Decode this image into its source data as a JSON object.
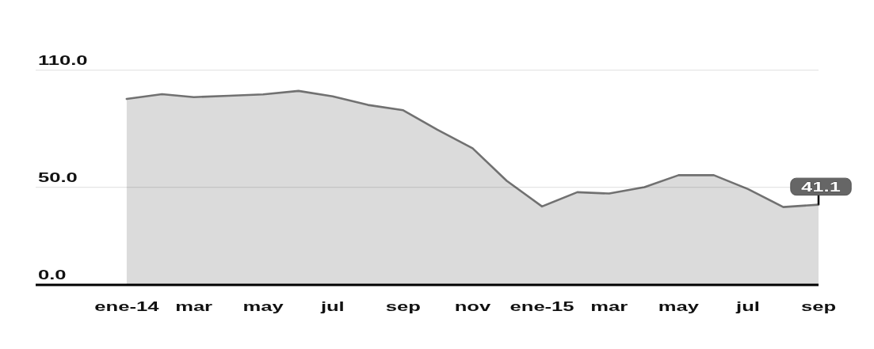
{
  "chart_data": {
    "type": "area",
    "x": [
      "2014-01",
      "2014-02",
      "2014-03",
      "2014-04",
      "2014-05",
      "2014-06",
      "2014-07",
      "2014-08",
      "2014-09",
      "2014-10",
      "2014-11",
      "2014-12",
      "2015-01",
      "2015-02",
      "2015-03",
      "2015-04",
      "2015-05",
      "2015-06",
      "2015-07",
      "2015-08",
      "2015-09"
    ],
    "values": [
      95.3,
      97.7,
      96.2,
      96.9,
      97.6,
      99.4,
      96.6,
      92.2,
      89.5,
      79.5,
      70.0,
      53.3,
      40.2,
      47.5,
      46.8,
      50.1,
      56.2,
      56.2,
      49.1,
      39.9,
      41.1
    ],
    "value_labels": [
      null,
      null,
      null,
      null,
      null,
      null,
      null,
      null,
      null,
      null,
      null,
      null,
      null,
      null,
      null,
      null,
      null,
      null,
      null,
      null,
      "41.1"
    ],
    "color": "#717171",
    "xlim": [
      "2013-10-13",
      "2015-09"
    ],
    "xticks": [
      {
        "value": "2014-01",
        "label": "ene-14"
      },
      {
        "value": "2014-03",
        "label": "mar"
      },
      {
        "value": "2014-05",
        "label": "may"
      },
      {
        "value": "2014-07",
        "label": "jul"
      },
      {
        "value": "2014-09",
        "label": "sep"
      },
      {
        "value": "2014-11",
        "label": "nov"
      },
      {
        "value": "2015-01",
        "label": "ene-15"
      },
      {
        "value": "2015-03",
        "label": "mar"
      },
      {
        "value": "2015-05",
        "label": "may"
      },
      {
        "value": "2015-07",
        "label": "jul"
      },
      {
        "value": "2015-09",
        "label": "sep"
      }
    ],
    "ylim": [
      0,
      110
    ],
    "yticks": [
      {
        "value": 0,
        "label": "0.0"
      },
      {
        "value": 50,
        "label": "50.0"
      },
      {
        "value": 110,
        "label": "110.0"
      }
    ],
    "grid": "y"
  }
}
